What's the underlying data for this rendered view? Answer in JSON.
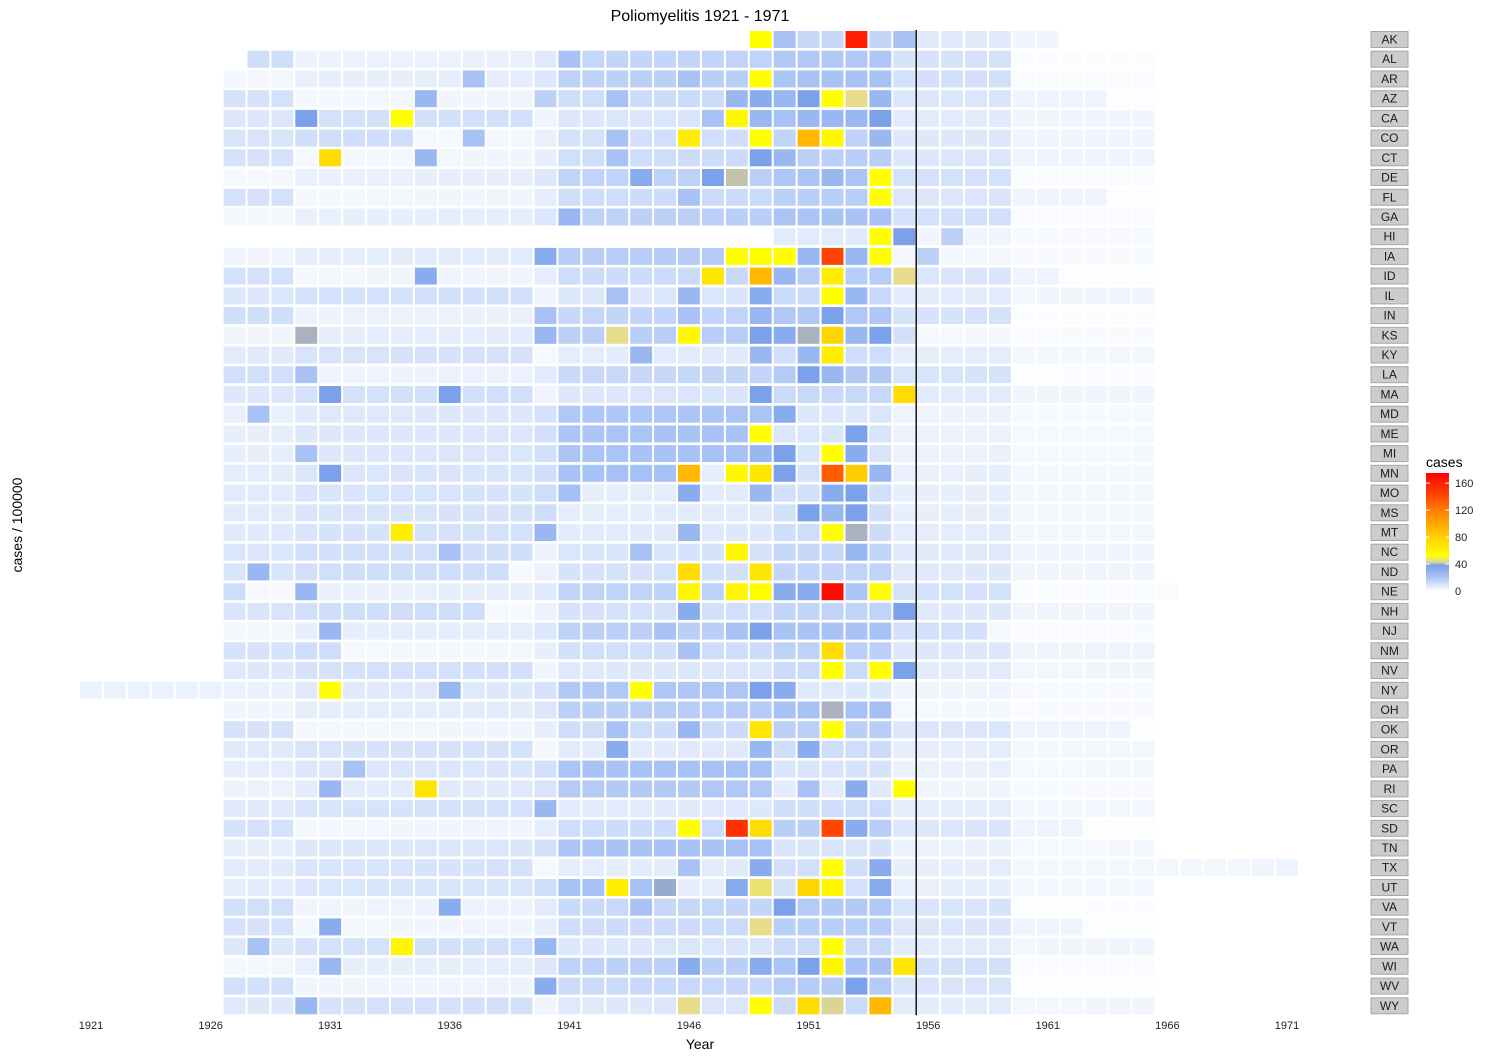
{
  "chart_data": {
    "type": "heatmap",
    "title": "Poliomyelitis 1921 - 1971",
    "xlabel": "Year",
    "ylabel": "cases / 100000",
    "xlim": [
      1921,
      1971
    ],
    "x_ticks": [
      "1921",
      "1926",
      "1931",
      "1936",
      "1941",
      "1946",
      "1951",
      "1956",
      "1961",
      "1966",
      "1971"
    ],
    "vaccine_line_year": 1955,
    "legend": {
      "title": "cases",
      "ticks": [
        "160",
        "120",
        "80",
        "40",
        "0"
      ],
      "range": [
        0,
        175
      ],
      "position": "right"
    },
    "colors": [
      "#ffffff",
      "#e6eefc",
      "#a8c2f5",
      "#7aa1ea",
      "#aab2bf",
      "#e6dc8c",
      "#ffff00",
      "#ffcc00",
      "#ff8c00",
      "#ff4500",
      "#ff0000"
    ],
    "color_stops": [
      0,
      5,
      20,
      35,
      40,
      45,
      50,
      80,
      110,
      140,
      175
    ],
    "states": [
      "AK",
      "AL",
      "AR",
      "AZ",
      "CA",
      "CO",
      "CT",
      "DE",
      "FL",
      "GA",
      "HI",
      "IA",
      "ID",
      "IL",
      "IN",
      "KS",
      "KY",
      "LA",
      "MA",
      "MD",
      "ME",
      "MI",
      "MN",
      "MO",
      "MS",
      "MT",
      "NC",
      "ND",
      "NE",
      "NH",
      "NJ",
      "NM",
      "NV",
      "NY",
      "OH",
      "OK",
      "OR",
      "PA",
      "RI",
      "SC",
      "SD",
      "TN",
      "TX",
      "UT",
      "VA",
      "VT",
      "WA",
      "WI",
      "WV",
      "WY"
    ],
    "start_year": {
      "AK": 1949,
      "AL": 1928,
      "AR": 1927,
      "AZ": 1927,
      "CA": 1927,
      "CO": 1927,
      "CT": 1927,
      "DE": 1927,
      "FL": 1927,
      "GA": 1927,
      "HI": 1950,
      "IA": 1927,
      "ID": 1927,
      "IL": 1927,
      "IN": 1927,
      "KS": 1927,
      "KY": 1927,
      "LA": 1927,
      "MA": 1927,
      "MD": 1927,
      "ME": 1927,
      "MI": 1927,
      "MN": 1927,
      "MO": 1927,
      "MS": 1927,
      "MT": 1927,
      "NC": 1927,
      "ND": 1927,
      "NE": 1927,
      "NH": 1927,
      "NJ": 1927,
      "NM": 1927,
      "NV": 1927,
      "NY": 1921,
      "OH": 1927,
      "OK": 1927,
      "OR": 1927,
      "PA": 1927,
      "RI": 1927,
      "SC": 1927,
      "SD": 1927,
      "TN": 1927,
      "TX": 1927,
      "UT": 1927,
      "VA": 1927,
      "VT": 1927,
      "WA": 1927,
      "WI": 1927,
      "WV": 1927,
      "WY": 1927
    },
    "end_year": {
      "AK": 1961,
      "AL": 1965,
      "AR": 1965,
      "AZ": 1965,
      "CA": 1965,
      "CO": 1965,
      "CT": 1965,
      "DE": 1965,
      "FL": 1965,
      "GA": 1965,
      "HI": 1965,
      "IA": 1965,
      "ID": 1965,
      "IL": 1965,
      "IN": 1965,
      "KS": 1965,
      "KY": 1965,
      "LA": 1965,
      "MA": 1965,
      "MD": 1965,
      "ME": 1965,
      "MI": 1965,
      "MN": 1965,
      "MO": 1965,
      "MS": 1965,
      "MT": 1965,
      "NC": 1965,
      "ND": 1965,
      "NE": 1966,
      "NH": 1965,
      "NJ": 1965,
      "NM": 1965,
      "NV": 1965,
      "NY": 1965,
      "OH": 1965,
      "OK": 1965,
      "OR": 1965,
      "PA": 1965,
      "RI": 1965,
      "SC": 1965,
      "SD": 1965,
      "TN": 1965,
      "TX": 1971,
      "UT": 1965,
      "VA": 1965,
      "VT": 1965,
      "WA": 1965,
      "WI": 1965,
      "WV": 1965,
      "WY": 1965
    },
    "highlights": {
      "AK": {
        "1949": 50,
        "1950": 20,
        "1953": 160,
        "1955": 20
      },
      "AL": {
        "1941": 20
      },
      "AR": {
        "1937": 20,
        "1946": 20,
        "1949": 50,
        "1951": 20
      },
      "AZ": {
        "1935": 25,
        "1940": 15,
        "1943": 20,
        "1948": 25,
        "1949": 30,
        "1950": 25,
        "1951": 35,
        "1952": 50,
        "1953": 45,
        "1954": 25
      },
      "CA": {
        "1930": 35,
        "1934": 50,
        "1947": 20,
        "1948": 55,
        "1949": 25,
        "1950": 20,
        "1951": 25,
        "1952": 25,
        "1953": 25,
        "1954": 35
      },
      "CO": {
        "1937": 20,
        "1943": 20,
        "1946": 60,
        "1949": 50,
        "1951": 90,
        "1952": 55,
        "1954": 25
      },
      "CT": {
        "1931": 70,
        "1935": 25,
        "1943": 20,
        "1949": 35,
        "1950": 25
      },
      "DE": {
        "1944": 30,
        "1947": 35,
        "1948": 42,
        "1952": 25,
        "1954": 50
      },
      "FL": {
        "1946": 20,
        "1954": 50
      },
      "GA": {
        "1941": 25
      },
      "HI": {
        "1954": 50,
        "1955": 35,
        "1957": 15
      },
      "IA": {
        "1940": 30,
        "1948": 50,
        "1949": 50,
        "1950": 50,
        "1951": 25,
        "1952": 140,
        "1953": 25,
        "1954": 50,
        "1956": 15
      },
      "ID": {
        "1935": 30,
        "1947": 65,
        "1949": 90,
        "1950": 25,
        "1952": 60,
        "1955": 45
      },
      "IL": {
        "1943": 20,
        "1946": 25,
        "1949": 30,
        "1952": 50,
        "1953": 25
      },
      "IN": {
        "1940": 20,
        "1946": 20,
        "1949": 25,
        "1952": 35
      },
      "KS": {
        "1930": 40,
        "1940": 25,
        "1943": 45,
        "1946": 55,
        "1949": 35,
        "1950": 30,
        "1951": 40,
        "1952": 75,
        "1953": 25,
        "1954": 35
      },
      "KY": {
        "1944": 25,
        "1949": 25,
        "1951": 25,
        "1952": 60
      },
      "LA": {
        "1930": 20,
        "1951": 35,
        "1952": 25
      },
      "MA": {
        "1931": 35,
        "1936": 35,
        "1949": 35,
        "1955": 70
      },
      "MD": {
        "1928": 20,
        "1950": 30
      },
      "ME": {
        "1949": 50,
        "1953": 35
      },
      "MI": {
        "1930": 20,
        "1949": 25,
        "1950": 35,
        "1952": 50,
        "1953": 30
      },
      "MN": {
        "1931": 35,
        "1946": 90,
        "1948": 55,
        "1949": 65,
        "1950": 35,
        "1952": 130,
        "1953": 80,
        "1954": 25
      },
      "MO": {
        "1946": 30,
        "1949": 25,
        "1952": 30,
        "1953": 35
      },
      "MS": {
        "1951": 35,
        "1952": 25,
        "1953": 35
      },
      "MT": {
        "1934": 60,
        "1940": 25,
        "1946": 25,
        "1952": 50,
        "1953": 40
      },
      "NC": {
        "1936": 20,
        "1944": 20,
        "1948": 55,
        "1953": 25
      },
      "ND": {
        "1928": 25,
        "1946": 70,
        "1949": 65
      },
      "NE": {
        "1930": 25,
        "1946": 55,
        "1948": 55,
        "1949": 50,
        "1950": 30,
        "1951": 30,
        "1952": 170,
        "1954": 50
      },
      "NH": {
        "1946": 30,
        "1955": 35
      },
      "NJ": {
        "1931": 25,
        "1945": 20,
        "1948": 20,
        "1949": 35
      },
      "NM": {
        "1946": 20,
        "1952": 70
      },
      "NV": {
        "1952": 50,
        "1954": 50,
        "1955": 35
      },
      "NY": {
        "1931": 50,
        "1936": 25,
        "1944": 50,
        "1949": 35,
        "1950": 30
      },
      "OH": {
        "1952": 40
      },
      "OK": {
        "1943": 20,
        "1946": 25,
        "1949": 65,
        "1952": 50
      },
      "OR": {
        "1943": 30,
        "1949": 25,
        "1951": 30
      },
      "PA": {
        "1932": 20
      },
      "RI": {
        "1931": 25,
        "1935": 65,
        "1951": 20,
        "1953": 30,
        "1955": 50
      },
      "SC": {
        "1940": 25
      },
      "SD": {
        "1946": 50,
        "1948": 150,
        "1949": 70,
        "1952": 140,
        "1953": 30
      },
      "TN": {
        "1946": 20
      },
      "TX": {
        "1946": 20,
        "1949": 30,
        "1952": 50,
        "1954": 30
      },
      "UT": {
        "1943": 60,
        "1945": 38,
        "1948": 30,
        "1949": 46,
        "1951": 75,
        "1952": 55,
        "1954": 30
      },
      "VA": {
        "1936": 30,
        "1944": 20,
        "1950": 35
      },
      "VT": {
        "1931": 30,
        "1949": 45
      },
      "WA": {
        "1928": 20,
        "1934": 55,
        "1940": 25,
        "1952": 50
      },
      "WI": {
        "1931": 25,
        "1946": 30,
        "1949": 30,
        "1951": 35,
        "1952": 55,
        "1955": 65
      },
      "WV": {
        "1940": 30,
        "1953": 35
      },
      "WY": {
        "1930": 25,
        "1946": 45,
        "1949": 50,
        "1951": 70,
        "1952": 44,
        "1954": 90
      }
    }
  }
}
